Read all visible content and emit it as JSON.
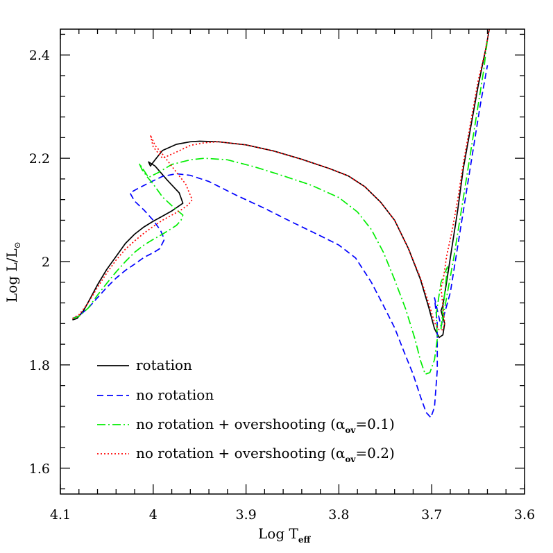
{
  "chart_data": {
    "type": "line",
    "xlabel": "Log T",
    "xlabel_sub": "eff",
    "ylabel": "Log L/L",
    "ylabel_symbol": "⊙",
    "xlim": [
      4.1,
      3.6
    ],
    "ylim": [
      1.55,
      2.45
    ],
    "x_inverted": true,
    "xticks": [
      4.1,
      4.0,
      3.9,
      3.8,
      3.7,
      3.6
    ],
    "xtick_labels": [
      "4.1",
      "4",
      "3.9",
      "3.8",
      "3.7",
      "3.6"
    ],
    "yticks": [
      1.6,
      1.8,
      2.0,
      2.2,
      2.4
    ],
    "ytick_labels": [
      "1.6",
      "1.8",
      "2",
      "2.2",
      "2.4"
    ],
    "grid": false,
    "legend_position": "bottom-left",
    "series": [
      {
        "name": "rotation",
        "color": "#000000",
        "style": "solid",
        "x": [
          4.087,
          4.082,
          4.075,
          4.068,
          4.06,
          4.05,
          4.04,
          4.03,
          4.02,
          4.01,
          4.0,
          3.99,
          3.98,
          3.972,
          3.968,
          3.972,
          3.985,
          3.998,
          4.005,
          4.003,
          3.998,
          3.99,
          3.975,
          3.96,
          3.95,
          3.93,
          3.9,
          3.87,
          3.84,
          3.81,
          3.79,
          3.772,
          3.755,
          3.74,
          3.725,
          3.712,
          3.703,
          3.697,
          3.692,
          3.688,
          3.686,
          3.69,
          3.688,
          3.684,
          3.678,
          3.672,
          3.666,
          3.658,
          3.65,
          3.642,
          3.638
        ],
        "y": [
          1.887,
          1.89,
          1.905,
          1.928,
          1.955,
          1.985,
          2.01,
          2.035,
          2.053,
          2.067,
          2.078,
          2.088,
          2.098,
          2.108,
          2.113,
          2.133,
          2.158,
          2.185,
          2.193,
          2.185,
          2.197,
          2.215,
          2.227,
          2.232,
          2.233,
          2.232,
          2.226,
          2.214,
          2.198,
          2.18,
          2.166,
          2.145,
          2.115,
          2.08,
          2.025,
          1.965,
          1.91,
          1.87,
          1.853,
          1.858,
          1.88,
          1.905,
          1.915,
          1.96,
          2.03,
          2.1,
          2.18,
          2.26,
          2.34,
          2.41,
          2.45
        ]
      },
      {
        "name": "no rotation",
        "color": "#0000ff",
        "style": "dashed",
        "x": [
          4.087,
          4.08,
          4.07,
          4.06,
          4.05,
          4.04,
          4.03,
          4.02,
          4.01,
          4.0,
          3.993,
          3.988,
          3.992,
          4.0,
          4.01,
          4.02,
          4.025,
          4.018,
          4.005,
          3.99,
          3.975,
          3.96,
          3.94,
          3.91,
          3.88,
          3.85,
          3.82,
          3.8,
          3.782,
          3.765,
          3.752,
          3.74,
          3.73,
          3.72,
          3.712,
          3.706,
          3.701,
          3.697,
          3.694,
          3.694,
          3.697,
          3.69,
          3.68,
          3.672,
          3.664,
          3.656,
          3.648,
          3.64
        ],
        "y": [
          1.89,
          1.895,
          1.91,
          1.93,
          1.95,
          1.968,
          1.983,
          1.995,
          2.008,
          2.017,
          2.025,
          2.043,
          2.06,
          2.08,
          2.1,
          2.117,
          2.133,
          2.14,
          2.152,
          2.165,
          2.17,
          2.167,
          2.155,
          2.128,
          2.103,
          2.076,
          2.05,
          2.032,
          2.007,
          1.96,
          1.915,
          1.872,
          1.826,
          1.782,
          1.738,
          1.708,
          1.698,
          1.718,
          1.79,
          1.88,
          1.93,
          1.875,
          1.94,
          2.03,
          2.12,
          2.21,
          2.3,
          2.38
        ]
      },
      {
        "name": "no rotation + overshooting (α_ov=0.1)",
        "color": "#00ee00",
        "style": "dash-dot",
        "x": [
          4.087,
          4.08,
          4.07,
          4.06,
          4.05,
          4.04,
          4.03,
          4.02,
          4.01,
          4.0,
          3.99,
          3.982,
          3.975,
          3.97,
          3.968,
          3.978,
          3.99,
          3.996,
          4.0,
          4.006,
          4.012,
          4.015,
          4.005,
          3.995,
          3.98,
          3.96,
          3.945,
          3.92,
          3.89,
          3.86,
          3.83,
          3.8,
          3.78,
          3.765,
          3.752,
          3.74,
          3.728,
          3.718,
          3.712,
          3.707,
          3.702,
          3.697,
          3.694,
          3.695,
          3.69,
          3.683,
          3.69,
          3.684,
          3.676,
          3.668,
          3.66,
          3.652,
          3.644,
          3.64
        ],
        "y": [
          1.89,
          1.894,
          1.91,
          1.935,
          1.958,
          1.98,
          2.0,
          2.018,
          2.032,
          2.043,
          2.053,
          2.062,
          2.07,
          2.08,
          2.09,
          2.105,
          2.125,
          2.14,
          2.15,
          2.163,
          2.178,
          2.19,
          2.163,
          2.172,
          2.188,
          2.197,
          2.2,
          2.197,
          2.183,
          2.166,
          2.148,
          2.124,
          2.096,
          2.062,
          2.018,
          1.965,
          1.908,
          1.85,
          1.808,
          1.782,
          1.785,
          1.81,
          1.85,
          1.9,
          1.96,
          1.99,
          1.87,
          1.93,
          2.01,
          2.1,
          2.19,
          2.28,
          2.37,
          2.43
        ]
      },
      {
        "name": "no rotation + overshooting (α_ov=0.2)",
        "color": "#ff0000",
        "style": "dotted",
        "x": [
          4.087,
          4.08,
          4.07,
          4.06,
          4.05,
          4.04,
          4.03,
          4.02,
          4.01,
          4.0,
          3.99,
          3.98,
          3.97,
          3.962,
          3.958,
          3.965,
          3.978,
          3.99,
          3.998,
          4.003,
          4.0,
          3.99,
          3.975,
          3.96,
          3.945,
          3.93,
          3.9,
          3.87,
          3.84,
          3.81,
          3.79,
          3.772,
          3.755,
          3.74,
          3.725,
          3.712,
          3.703,
          3.697,
          3.692,
          3.688,
          3.686,
          3.69,
          3.688,
          3.684,
          3.678,
          3.672,
          3.666,
          3.658,
          3.65,
          3.642,
          3.638
        ],
        "y": [
          1.89,
          1.897,
          1.92,
          1.95,
          1.978,
          2.003,
          2.024,
          2.04,
          2.055,
          2.068,
          2.08,
          2.09,
          2.1,
          2.11,
          2.12,
          2.15,
          2.18,
          2.208,
          2.225,
          2.245,
          2.222,
          2.2,
          2.212,
          2.225,
          2.23,
          2.232,
          2.226,
          2.214,
          2.198,
          2.18,
          2.166,
          2.145,
          2.115,
          2.08,
          2.025,
          1.968,
          1.918,
          1.882,
          1.868,
          1.868,
          1.88,
          1.95,
          1.96,
          2.01,
          2.06,
          2.12,
          2.19,
          2.27,
          2.35,
          2.41,
          2.45
        ]
      }
    ]
  }
}
